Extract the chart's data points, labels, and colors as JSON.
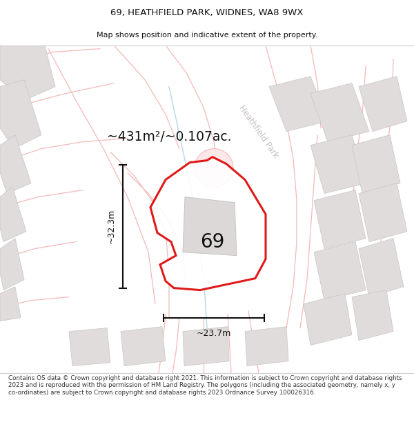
{
  "title_line1": "69, HEATHFIELD PARK, WIDNES, WA8 9WX",
  "title_line2": "Map shows position and indicative extent of the property.",
  "footer_text": "Contains OS data © Crown copyright and database right 2021. This information is subject to Crown copyright and database rights 2023 and is reproduced with the permission of HM Land Registry. The polygons (including the associated geometry, namely x, y co-ordinates) are subject to Crown copyright and database rights 2023 Ordnance Survey 100026316.",
  "area_text": "~431m²/~0.107ac.",
  "number_label": "69",
  "width_label": "~23.7m",
  "height_label": "~32.3m",
  "street_label": "Heathfield Park",
  "map_bg": "#ffffff",
  "plot_fill": "#ffffff",
  "plot_outline": "#dd0000",
  "road_line_color": "#f5b8b8",
  "building_fill": "#e0dcdc",
  "building_outline": "#c8c4c4",
  "dim_color": "#111111",
  "title_color": "#111111",
  "footer_color": "#333333",
  "street_text_color": "#c0b8b8",
  "blue_line_color": "#a8d0e0",
  "cul_de_sac_fill": "#fce8e8",
  "cul_de_sac_edge": "#f5b8b8"
}
